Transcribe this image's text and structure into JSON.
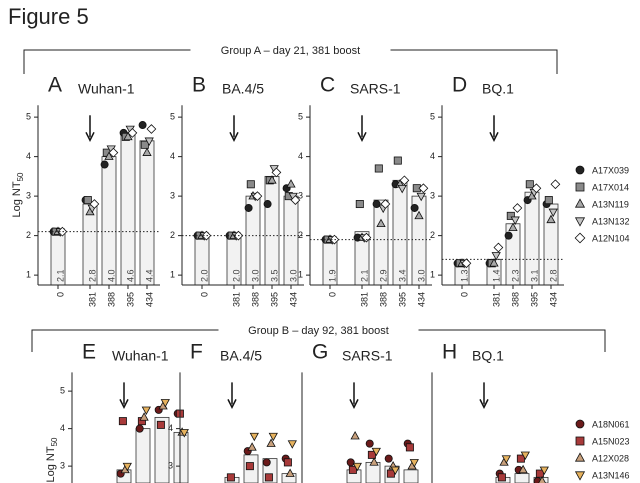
{
  "figure_title": "Figure 5",
  "groups": [
    {
      "label": "Group A – day 21, 381 boost",
      "legend": [
        {
          "name": "A17X039",
          "color": "#222222",
          "marker": "circle"
        },
        {
          "name": "A17X014",
          "color": "#8a8a8a",
          "marker": "square"
        },
        {
          "name": "A13N119",
          "color": "#a8a8a8",
          "marker": "triangle"
        },
        {
          "name": "A13N132",
          "color": "#c4c4c4",
          "marker": "triangle-down"
        },
        {
          "name": "A12N104",
          "color": "#ffffff",
          "marker": "diamond"
        }
      ]
    },
    {
      "label": "Group B – day 92, 381 boost",
      "legend": [
        {
          "name": "A18N061",
          "color": "#6b1a1a",
          "marker": "circle"
        },
        {
          "name": "A15N023",
          "color": "#a83a3a",
          "marker": "square"
        },
        {
          "name": "A12X028",
          "color": "#c8a07c",
          "marker": "triangle"
        },
        {
          "name": "A13N146",
          "color": "#e6b25e",
          "marker": "triangle-down"
        }
      ]
    }
  ],
  "chart_data": [
    {
      "type": "bar",
      "group": 0,
      "panel": "A",
      "title": "Wuhan-1",
      "y_label": "Log NT",
      "y_label_sub": "50",
      "categories": [
        "0",
        "381",
        "388",
        "395",
        "434"
      ],
      "values": [
        2.1,
        2.8,
        4.0,
        4.6,
        4.4
      ],
      "value_labels": [
        "2.1",
        "2.8",
        "4.0",
        "4.6",
        "4.4"
      ],
      "lod": 2.1,
      "ylim": [
        0.75,
        5.3
      ],
      "yticks": [
        1,
        2,
        3,
        4,
        5
      ],
      "series": [
        {
          "values": [
            2.1,
            2.9,
            3.8,
            4.6,
            4.8
          ]
        },
        {
          "values": [
            2.1,
            2.9,
            4.1,
            4.5,
            4.3
          ]
        },
        {
          "values": [
            2.1,
            2.6,
            4.0,
            4.5,
            4.1
          ]
        },
        {
          "values": [
            2.1,
            2.7,
            4.2,
            4.7,
            4.4
          ]
        },
        {
          "values": [
            2.1,
            2.8,
            4.1,
            4.6,
            4.7
          ]
        }
      ]
    },
    {
      "type": "bar",
      "group": 0,
      "panel": "B",
      "title": "BA.4/5",
      "categories": [
        "0",
        "381",
        "388",
        "395",
        "434"
      ],
      "values": [
        2.0,
        2.0,
        3.0,
        3.5,
        3.0
      ],
      "value_labels": [
        "2.0",
        "2.0",
        "3.0",
        "3.5",
        "3.0"
      ],
      "lod": 2.0,
      "ylim": [
        0.75,
        5.3
      ],
      "yticks": [
        1,
        2,
        3,
        4,
        5
      ],
      "series": [
        {
          "values": [
            2.0,
            2.0,
            2.7,
            2.8,
            3.2
          ]
        },
        {
          "values": [
            2.0,
            2.0,
            3.3,
            3.4,
            3.0
          ]
        },
        {
          "values": [
            2.0,
            2.0,
            3.0,
            3.4,
            3.3
          ]
        },
        {
          "values": [
            2.0,
            2.0,
            3.0,
            3.7,
            3.0
          ]
        },
        {
          "values": [
            2.0,
            2.0,
            3.0,
            3.6,
            2.9
          ]
        }
      ]
    },
    {
      "type": "bar",
      "group": 0,
      "panel": "C",
      "title": "SARS-1",
      "categories": [
        "0",
        "381",
        "388",
        "395",
        "434"
      ],
      "values": [
        1.9,
        2.1,
        2.9,
        3.4,
        3.0
      ],
      "value_labels": [
        "1.9",
        "2.1",
        "2.9",
        "3.4",
        "3.0"
      ],
      "lod": 1.9,
      "ylim": [
        0.75,
        5.3
      ],
      "yticks": [
        1,
        2,
        3,
        4,
        5
      ],
      "series": [
        {
          "values": [
            1.9,
            1.95,
            2.8,
            3.3,
            2.7
          ]
        },
        {
          "values": [
            1.9,
            2.8,
            3.7,
            3.9,
            3.2
          ]
        },
        {
          "values": [
            1.9,
            1.95,
            2.3,
            3.3,
            2.5
          ]
        },
        {
          "values": [
            1.9,
            1.95,
            2.7,
            3.2,
            3.0
          ]
        },
        {
          "values": [
            1.9,
            1.95,
            2.8,
            3.4,
            3.2
          ]
        }
      ]
    },
    {
      "type": "bar",
      "group": 0,
      "panel": "D",
      "title": "BQ.1",
      "categories": [
        "0",
        "381",
        "388",
        "395",
        "434"
      ],
      "values": [
        1.3,
        1.4,
        2.3,
        3.1,
        2.8
      ],
      "value_labels": [
        "1.3",
        "1.4",
        "2.3",
        "3.1",
        "2.8"
      ],
      "lod": 1.4,
      "ylim": [
        0.75,
        5.3
      ],
      "yticks": [
        1,
        2,
        3,
        4,
        5
      ],
      "series": [
        {
          "values": [
            1.3,
            1.3,
            2.0,
            2.9,
            2.8
          ]
        },
        {
          "values": [
            1.3,
            1.3,
            2.5,
            3.3,
            2.9
          ]
        },
        {
          "values": [
            1.3,
            1.3,
            2.2,
            3.0,
            2.4
          ]
        },
        {
          "values": [
            1.3,
            1.5,
            2.4,
            3.1,
            2.6
          ]
        },
        {
          "values": [
            1.3,
            1.7,
            2.7,
            3.2,
            3.3
          ]
        }
      ]
    },
    {
      "type": "bar",
      "group": 1,
      "panel": "E",
      "title": "Wuhan-1",
      "y_label": "Log NT",
      "y_label_sub": "50",
      "categories": [
        null,
        null,
        null,
        null,
        null
      ],
      "values": [
        null,
        2.9,
        4.0,
        4.3,
        3.9
      ],
      "ylim": [
        2.55,
        5.5
      ],
      "yticks": [
        3,
        4,
        5
      ],
      "series": [
        {
          "values": [
            null,
            2.8,
            4.0,
            4.5,
            4.4
          ]
        },
        {
          "values": [
            null,
            4.2,
            4.2,
            4.1,
            4.4
          ]
        },
        {
          "values": [
            null,
            2.9,
            4.3,
            4.6,
            3.9
          ]
        },
        {
          "values": [
            null,
            3.0,
            4.5,
            4.7,
            3.9
          ]
        }
      ]
    },
    {
      "type": "bar",
      "group": 1,
      "panel": "F",
      "title": "BA.4/5",
      "categories": [
        null,
        null,
        null,
        null,
        null
      ],
      "values": [
        null,
        2.7,
        3.3,
        3.2,
        2.8
      ],
      "ylim": [
        2.55,
        5.5
      ],
      "yticks": [
        3,
        4
      ],
      "series": [
        {
          "values": [
            null,
            null,
            3.4,
            3.1,
            3.2
          ]
        },
        {
          "values": [
            null,
            2.7,
            3.0,
            2.7,
            3.1
          ]
        },
        {
          "values": [
            null,
            null,
            3.5,
            3.6,
            2.8
          ]
        },
        {
          "values": [
            null,
            null,
            3.8,
            3.8,
            3.6
          ]
        }
      ]
    },
    {
      "type": "bar",
      "group": 1,
      "panel": "G",
      "title": "SARS-1",
      "categories": [
        null,
        null,
        null,
        null,
        null
      ],
      "values": [
        null,
        2.9,
        3.1,
        3.0,
        2.9
      ],
      "ylim": [
        2.55,
        5.5
      ],
      "yticks": [],
      "series": [
        {
          "values": [
            null,
            3.1,
            3.6,
            3.2,
            3.6
          ]
        },
        {
          "values": [
            null,
            2.9,
            3.3,
            2.8,
            3.5
          ]
        },
        {
          "values": [
            null,
            3.8,
            3.1,
            3.0,
            3.0
          ]
        },
        {
          "values": [
            null,
            3.0,
            3.4,
            2.9,
            3.1
          ]
        }
      ]
    },
    {
      "type": "bar",
      "group": 1,
      "panel": "H",
      "title": "BQ.1",
      "categories": [
        null,
        null,
        null,
        null,
        null
      ],
      "values": [
        null,
        null,
        2.7,
        2.8,
        2.7
      ],
      "ylim": [
        2.55,
        5.5
      ],
      "yticks": [],
      "series": [
        {
          "values": [
            null,
            null,
            2.8,
            2.9,
            2.6
          ]
        },
        {
          "values": [
            null,
            null,
            2.7,
            3.2,
            2.8
          ]
        },
        {
          "values": [
            null,
            null,
            3.1,
            2.9,
            2.6
          ]
        },
        {
          "values": [
            null,
            null,
            3.2,
            3.3,
            2.9
          ]
        }
      ]
    }
  ]
}
